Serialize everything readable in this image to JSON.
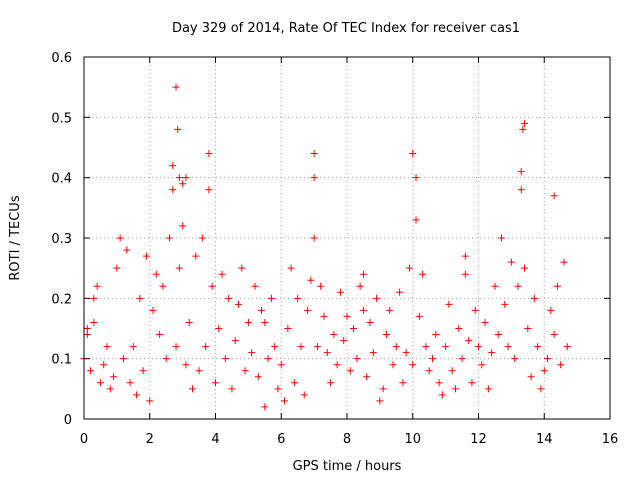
{
  "chart_data": {
    "type": "scatter",
    "title": "Day 329 of 2014, Rate Of TEC Index for receiver cas1",
    "xlabel": "GPS time / hours",
    "ylabel": "ROTI / TECUs",
    "xlim": [
      0,
      16
    ],
    "ylim": [
      0,
      0.6
    ],
    "xticks": [
      "0",
      "2",
      "4",
      "6",
      "8",
      "10",
      "12",
      "14",
      "16"
    ],
    "yticks": [
      "0",
      "0.1",
      "0.2",
      "0.3",
      "0.4",
      "0.5",
      "0.6"
    ],
    "grid": true,
    "legend": "none",
    "marker": "plus",
    "color": "#ff0000",
    "series": [
      {
        "name": "ROTI",
        "x": [
          0.0,
          0.1,
          0.2,
          0.3,
          0.4,
          0.5,
          0.6,
          0.7,
          0.8,
          0.9,
          1.0,
          1.1,
          1.2,
          1.3,
          1.4,
          1.5,
          1.6,
          1.7,
          1.8,
          1.9,
          2.0,
          2.1,
          2.2,
          2.3,
          2.4,
          2.5,
          2.6,
          2.7,
          2.8,
          2.9,
          3.0,
          3.1,
          3.2,
          3.3,
          3.4,
          3.5,
          3.6,
          3.7,
          3.8,
          3.9,
          4.0,
          4.1,
          4.2,
          4.3,
          4.4,
          4.5,
          4.6,
          4.7,
          4.8,
          4.9,
          5.0,
          5.1,
          5.2,
          5.3,
          5.4,
          5.5,
          5.6,
          5.7,
          5.8,
          5.9,
          6.0,
          6.1,
          6.2,
          6.3,
          6.4,
          6.5,
          6.6,
          6.7,
          6.8,
          6.9,
          7.0,
          7.1,
          7.2,
          7.3,
          7.4,
          7.5,
          7.6,
          7.7,
          7.8,
          7.9,
          8.0,
          8.1,
          8.2,
          8.3,
          8.4,
          8.5,
          8.6,
          8.7,
          8.8,
          8.9,
          9.0,
          9.1,
          9.2,
          9.3,
          9.4,
          9.5,
          9.6,
          9.7,
          9.8,
          9.9,
          10.0,
          10.1,
          10.2,
          10.3,
          10.4,
          10.5,
          10.6,
          10.7,
          10.8,
          10.9,
          11.0,
          11.1,
          11.2,
          11.3,
          11.4,
          11.5,
          11.6,
          11.7,
          11.8,
          11.9,
          12.0,
          12.1,
          12.2,
          12.3,
          12.4,
          12.5,
          12.6,
          12.7,
          12.8,
          12.9,
          13.0,
          13.1,
          13.2,
          13.3,
          13.4,
          13.5,
          13.6,
          13.7,
          13.8,
          13.9,
          14.0,
          14.1,
          14.2,
          14.3,
          14.4,
          14.5,
          14.6,
          14.7,
          2.8,
          2.85,
          2.9,
          3.8,
          7.0,
          10.0,
          13.4,
          13.35,
          14.3,
          3.0,
          3.1,
          2.7,
          7.0,
          10.1,
          13.3,
          0.3,
          0.1,
          5.5,
          8.5,
          11.6
        ],
        "y": [
          0.1,
          0.15,
          0.08,
          0.2,
          0.22,
          0.06,
          0.09,
          0.12,
          0.05,
          0.07,
          0.25,
          0.3,
          0.1,
          0.28,
          0.06,
          0.12,
          0.04,
          0.2,
          0.08,
          0.27,
          0.03,
          0.18,
          0.24,
          0.14,
          0.22,
          0.1,
          0.3,
          0.38,
          0.12,
          0.25,
          0.32,
          0.09,
          0.16,
          0.05,
          0.27,
          0.08,
          0.3,
          0.12,
          0.38,
          0.22,
          0.06,
          0.15,
          0.24,
          0.1,
          0.2,
          0.05,
          0.13,
          0.19,
          0.25,
          0.08,
          0.16,
          0.11,
          0.22,
          0.07,
          0.18,
          0.02,
          0.1,
          0.2,
          0.12,
          0.05,
          0.09,
          0.03,
          0.15,
          0.25,
          0.06,
          0.2,
          0.12,
          0.04,
          0.18,
          0.23,
          0.3,
          0.12,
          0.22,
          0.17,
          0.11,
          0.06,
          0.14,
          0.09,
          0.21,
          0.13,
          0.17,
          0.08,
          0.15,
          0.1,
          0.22,
          0.18,
          0.07,
          0.16,
          0.11,
          0.2,
          0.03,
          0.05,
          0.14,
          0.18,
          0.09,
          0.12,
          0.21,
          0.06,
          0.11,
          0.25,
          0.09,
          0.33,
          0.17,
          0.24,
          0.12,
          0.08,
          0.1,
          0.14,
          0.06,
          0.04,
          0.12,
          0.19,
          0.08,
          0.05,
          0.15,
          0.1,
          0.24,
          0.13,
          0.06,
          0.18,
          0.12,
          0.09,
          0.16,
          0.05,
          0.11,
          0.22,
          0.14,
          0.3,
          0.19,
          0.12,
          0.26,
          0.1,
          0.22,
          0.38,
          0.25,
          0.15,
          0.07,
          0.2,
          0.12,
          0.05,
          0.08,
          0.1,
          0.18,
          0.14,
          0.22,
          0.09,
          0.26,
          0.12,
          0.55,
          0.48,
          0.4,
          0.44,
          0.44,
          0.44,
          0.49,
          0.48,
          0.37,
          0.39,
          0.4,
          0.42,
          0.4,
          0.4,
          0.41,
          0.16,
          0.14,
          0.16,
          0.24,
          0.27
        ]
      }
    ]
  }
}
